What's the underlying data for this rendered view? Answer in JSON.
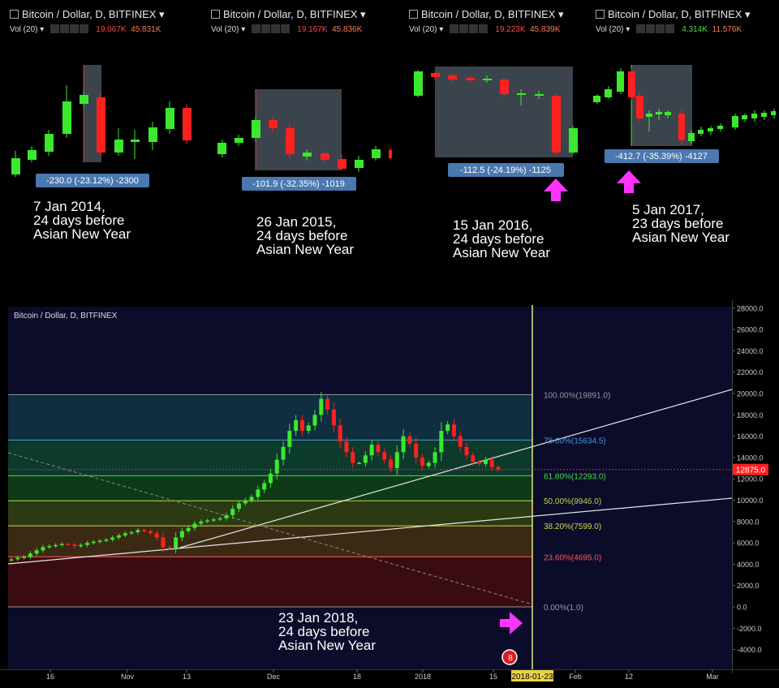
{
  "mini_charts": [
    {
      "title": "Bitcoin / Dollar, D, BITFINEX",
      "vol_label": "Vol (20)",
      "vol_a": "19.067K",
      "vol_b": "45.831K",
      "vol_a_color": "red",
      "measure": "-230.0 (-23.12%) -2300",
      "caption": "7 Jan 2014,\n24 days before\nAsian New Year"
    },
    {
      "title": "Bitcoin / Dollar, D, BITFINEX",
      "vol_label": "Vol (20)",
      "vol_a": "19.167K",
      "vol_b": "45.836K",
      "vol_a_color": "red",
      "measure": "-101.9 (-32.35%) -1019",
      "caption": "26 Jan 2015,\n24 days before\nAsian New Year"
    },
    {
      "title": "Bitcoin / Dollar, D, BITFINEX",
      "vol_label": "Vol (20)",
      "vol_a": "19.223K",
      "vol_b": "45.839K",
      "vol_a_color": "red",
      "measure": "-112.5 (-24.19%) -1125",
      "caption": "15 Jan 2016,\n24 days before\nAsian New Year"
    },
    {
      "title": "Bitcoin / Dollar, D, BITFINEX",
      "vol_label": "Vol (20)",
      "vol_a": "4.314K",
      "vol_b": "11.576K",
      "vol_a_color": "green",
      "measure": "-412.7 (-35.39%) -4127",
      "caption": "5 Jan 2017,\n23 days before\nAsian New Year"
    }
  ],
  "main": {
    "legend": "Bitcoin / Dollar, D, BITFINEX",
    "caption": "23 Jan 2018,\n24 days before\nAsian New Year",
    "current_price_label": "12875.0",
    "vline_date_label": "2018-01-23",
    "badge": "8"
  },
  "chart_data": {
    "type": "candlestick",
    "title": "Bitcoin / Dollar, D, BITFINEX",
    "y_ticks": [
      28000,
      26000,
      24000,
      22000,
      20000,
      18000,
      16000,
      14000,
      12000,
      10000,
      8000,
      6000,
      4000,
      2000,
      0,
      -2000,
      -4000
    ],
    "y_tick_labels": [
      "28000.0",
      "26000.0",
      "24000.0",
      "22000.0",
      "20000.0",
      "18000.0",
      "16000.0",
      "14000.0",
      "12000.0",
      "10000.0",
      "8000.0",
      "6000.0",
      "4000.0",
      "2000.0",
      "0.0",
      "-2000.0",
      "-4000.0"
    ],
    "ylim": [
      -5300,
      28500
    ],
    "x_tick_labels": [
      "16",
      "Nov",
      "13",
      "Dec",
      "18",
      "2018",
      "15",
      "Feb",
      "12",
      "Mar"
    ],
    "fib_levels": [
      {
        "label": "100.00%(19891.0)",
        "value": 19891,
        "color": "#9a9a9a"
      },
      {
        "label": "78.60%(15634.5)",
        "value": 15634.5,
        "color": "#4a9ad6"
      },
      {
        "label": "61.80%(12293.0)",
        "value": 12293,
        "color": "#4ade4a"
      },
      {
        "label": "50.00%(9946.0)",
        "value": 9946,
        "color": "#b6d84a"
      },
      {
        "label": "38.20%(7599.0)",
        "value": 7599,
        "color": "#d6d64a"
      },
      {
        "label": "23.60%(4695.0)",
        "value": 4695,
        "color": "#ff5a5a"
      },
      {
        "label": "0.00%(1.0)",
        "value": 1,
        "color": "#9a9a9a"
      }
    ],
    "current_price": 12875,
    "series_close": [
      4450,
      4600,
      4700,
      5000,
      5300,
      5600,
      5700,
      5800,
      5900,
      5850,
      5700,
      5800,
      6000,
      6100,
      6200,
      6300,
      6500,
      6700,
      6900,
      7000,
      7200,
      7100,
      6900,
      6500,
      5600,
      5500,
      6500,
      7100,
      7400,
      7800,
      8000,
      8100,
      8200,
      8300,
      8600,
      9200,
      9700,
      10000,
      10300,
      11000,
      11600,
      12500,
      13800,
      15000,
      16500,
      17500,
      16500,
      17000,
      18000,
      19500,
      18500,
      17000,
      15500,
      14500,
      13500,
      13500,
      14200,
      15200,
      14500,
      13800,
      13000,
      14500,
      16000,
      15300,
      14000,
      13200,
      13500,
      14500,
      16500,
      17100,
      16000,
      15000,
      14200,
      13600,
      13400,
      13800,
      13100,
      12875
    ]
  },
  "colors": {
    "up": "#3ce82e",
    "down": "#ff2020",
    "accent_arrow": "#ff33ff",
    "vline": "#e8e88a",
    "price": "#ff2020"
  }
}
